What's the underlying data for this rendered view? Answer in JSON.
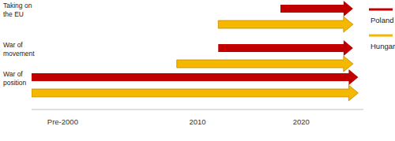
{
  "chart_data": {
    "type": "gantt",
    "orientation": "horizontal",
    "categories": [
      "Taking on the EU",
      "War of movement",
      "War of position"
    ],
    "series": [
      {
        "name": "Poland",
        "color": "#c00000",
        "start": [
          2018,
          2012,
          1994
        ],
        "values": [
          2025,
          2025,
          2025.5
        ]
      },
      {
        "name": "Hungary",
        "color": "#f5b800",
        "start": [
          2012,
          2008,
          1994
        ],
        "values": [
          2025,
          2025,
          2025.5
        ]
      }
    ],
    "xlim": [
      1994,
      2026
    ],
    "xticks": [
      {
        "value": 1997,
        "label": "Pre-2000"
      },
      2010,
      2020
    ],
    "legend": "upper right",
    "grid": false
  }
}
